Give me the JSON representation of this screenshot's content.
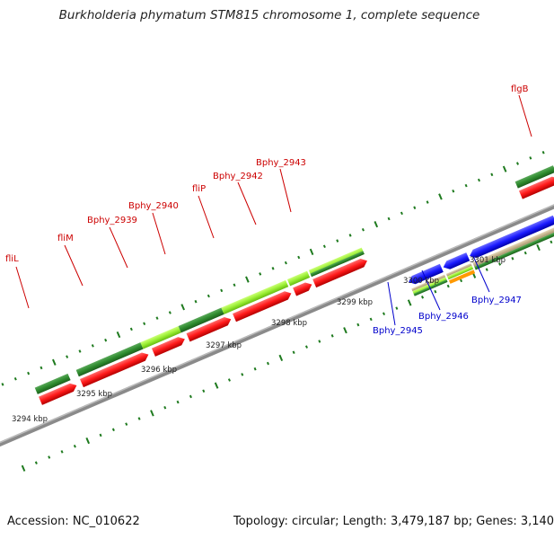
{
  "title": "Burkholderia phymatum STM815 chromosome 1, complete sequence",
  "footer": {
    "accession": "Accession: NC_010622",
    "summary": "Topology: circular; Length: 3,479,187 bp; Genes: 3,140"
  },
  "ticks": [
    "3294 kbp",
    "3295 kbp",
    "3296 kbp",
    "3297 kbp",
    "3298 kbp",
    "3299 kbp",
    "3300 kbp",
    "3301 kbp"
  ],
  "gene_labels": {
    "red": [
      "fliL",
      "fliM",
      "Bphy_2939",
      "Bphy_2940",
      "fliP",
      "Bphy_2942",
      "Bphy_2943",
      "flgB"
    ],
    "blue": [
      "Bphy_2945",
      "Bphy_2946",
      "Bphy_2947"
    ]
  },
  "colors": {
    "red_label": "#cc0000",
    "blue_label": "#0000cc",
    "gene_red": "#ff1a1a",
    "gene_blue": "#1a1aff",
    "dark_green": "#2e8b2e",
    "light_green": "#99ee33",
    "tan": "#c8b48a",
    "orange": "#ff9900",
    "backbone": "#888888",
    "tick_green": "#1e7a1e"
  }
}
